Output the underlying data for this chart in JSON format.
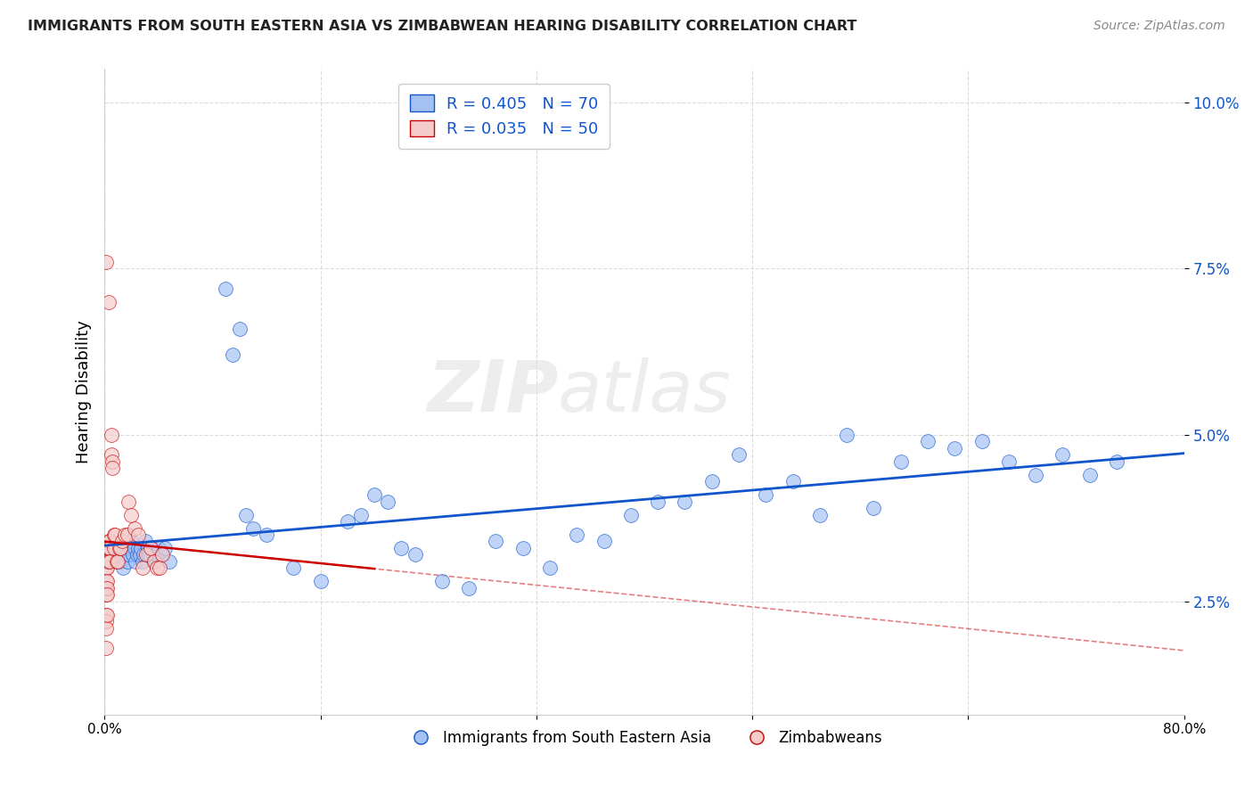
{
  "title": "IMMIGRANTS FROM SOUTH EASTERN ASIA VS ZIMBABWEAN HEARING DISABILITY CORRELATION CHART",
  "source": "Source: ZipAtlas.com",
  "ylabel": "Hearing Disability",
  "blue_R": 0.405,
  "blue_N": 70,
  "pink_R": 0.035,
  "pink_N": 50,
  "blue_color": "#a4c2f4",
  "pink_color": "#f4cccc",
  "blue_line_color": "#1155cc",
  "pink_line_color": "#cc0000",
  "watermark_zip": "ZIP",
  "watermark_atlas": "atlas",
  "xlim": [
    0.0,
    0.8
  ],
  "ylim": [
    0.008,
    0.105
  ],
  "yticks": [
    0.025,
    0.05,
    0.075,
    0.1
  ],
  "ytick_labels": [
    "2.5%",
    "5.0%",
    "7.5%",
    "10.0%"
  ],
  "xticks": [
    0.0,
    0.16,
    0.32,
    0.48,
    0.64,
    0.8
  ],
  "xtick_labels": [
    "0.0%",
    "",
    "",
    "",
    "",
    "80.0%"
  ],
  "blue_x": [
    0.005,
    0.008,
    0.01,
    0.012,
    0.014,
    0.015,
    0.016,
    0.017,
    0.018,
    0.019,
    0.02,
    0.021,
    0.022,
    0.023,
    0.024,
    0.025,
    0.026,
    0.027,
    0.028,
    0.029,
    0.03,
    0.032,
    0.033,
    0.035,
    0.036,
    0.038,
    0.04,
    0.042,
    0.045,
    0.048,
    0.12,
    0.14,
    0.16,
    0.18,
    0.19,
    0.2,
    0.21,
    0.22,
    0.23,
    0.25,
    0.27,
    0.29,
    0.31,
    0.33,
    0.35,
    0.37,
    0.39,
    0.41,
    0.43,
    0.45,
    0.47,
    0.49,
    0.51,
    0.53,
    0.55,
    0.57,
    0.59,
    0.61,
    0.63,
    0.65,
    0.67,
    0.69,
    0.71,
    0.73,
    0.75,
    0.09,
    0.095,
    0.1,
    0.105,
    0.11
  ],
  "blue_y": [
    0.031,
    0.033,
    0.032,
    0.031,
    0.03,
    0.032,
    0.033,
    0.031,
    0.032,
    0.033,
    0.034,
    0.032,
    0.033,
    0.031,
    0.032,
    0.033,
    0.032,
    0.033,
    0.031,
    0.032,
    0.034,
    0.033,
    0.032,
    0.033,
    0.031,
    0.032,
    0.033,
    0.032,
    0.033,
    0.031,
    0.035,
    0.03,
    0.028,
    0.037,
    0.038,
    0.041,
    0.04,
    0.033,
    0.032,
    0.028,
    0.027,
    0.034,
    0.033,
    0.03,
    0.035,
    0.034,
    0.038,
    0.04,
    0.04,
    0.043,
    0.047,
    0.041,
    0.043,
    0.038,
    0.05,
    0.039,
    0.046,
    0.049,
    0.048,
    0.049,
    0.046,
    0.044,
    0.047,
    0.044,
    0.046,
    0.072,
    0.062,
    0.066,
    0.038,
    0.036
  ],
  "pink_x": [
    0.001,
    0.001,
    0.001,
    0.001,
    0.001,
    0.001,
    0.001,
    0.001,
    0.001,
    0.001,
    0.002,
    0.002,
    0.002,
    0.002,
    0.002,
    0.002,
    0.002,
    0.003,
    0.003,
    0.003,
    0.004,
    0.004,
    0.004,
    0.005,
    0.005,
    0.006,
    0.006,
    0.007,
    0.007,
    0.008,
    0.009,
    0.01,
    0.011,
    0.012,
    0.013,
    0.015,
    0.017,
    0.018,
    0.02,
    0.022,
    0.025,
    0.028,
    0.031,
    0.034,
    0.037,
    0.039,
    0.041,
    0.043,
    0.001,
    0.003
  ],
  "pink_y": [
    0.033,
    0.031,
    0.03,
    0.028,
    0.027,
    0.026,
    0.023,
    0.022,
    0.021,
    0.018,
    0.033,
    0.031,
    0.03,
    0.028,
    0.027,
    0.026,
    0.023,
    0.034,
    0.033,
    0.031,
    0.034,
    0.033,
    0.031,
    0.05,
    0.047,
    0.046,
    0.045,
    0.035,
    0.033,
    0.035,
    0.031,
    0.031,
    0.033,
    0.033,
    0.034,
    0.035,
    0.035,
    0.04,
    0.038,
    0.036,
    0.035,
    0.03,
    0.032,
    0.033,
    0.031,
    0.03,
    0.03,
    0.032,
    0.076,
    0.07
  ],
  "legend_label_blue": "Immigrants from South Eastern Asia",
  "legend_label_pink": "Zimbabweans"
}
